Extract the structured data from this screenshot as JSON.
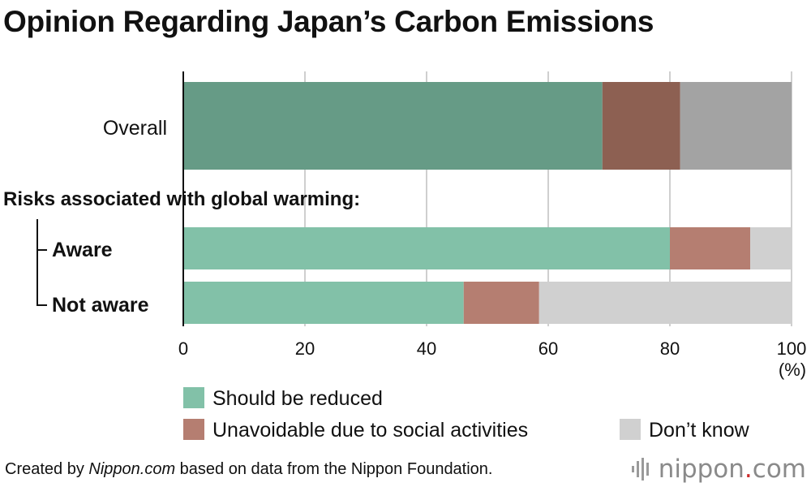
{
  "chart_data": {
    "type": "bar",
    "orientation": "horizontal",
    "stacked": true,
    "title": "Opinion Regarding Japan’s Carbon Emissions",
    "group_label": "Risks associated with global warming:",
    "categories": [
      "Overall",
      "Aware",
      "Not aware"
    ],
    "series": [
      {
        "name": "Should be reduced",
        "values": [
          68.9,
          80.0,
          46.1
        ]
      },
      {
        "name": "Unavoidable due to social activities",
        "values": [
          12.8,
          13.2,
          12.4
        ]
      },
      {
        "name": "Don’t know",
        "values": [
          18.3,
          6.8,
          41.5
        ]
      }
    ],
    "xlim": [
      0,
      100
    ],
    "xticks": [
      "0",
      "20",
      "40",
      "60",
      "80",
      "100"
    ],
    "xunit": "(%)",
    "grid": true,
    "legend_position": "bottom",
    "colors": {
      "overall": [
        "#669b86",
        "#8d6052",
        "#a3a3a3"
      ],
      "sub": [
        "#82c1a8",
        "#b57e71",
        "#d0d0d0"
      ]
    }
  },
  "footer": {
    "prefix": "Created by ",
    "source_name": "Nippon.com",
    "suffix": " based on data from the Nippon Foundation."
  },
  "logo": {
    "text_a": "nippon",
    "text_dot": ".",
    "text_b": "com"
  }
}
